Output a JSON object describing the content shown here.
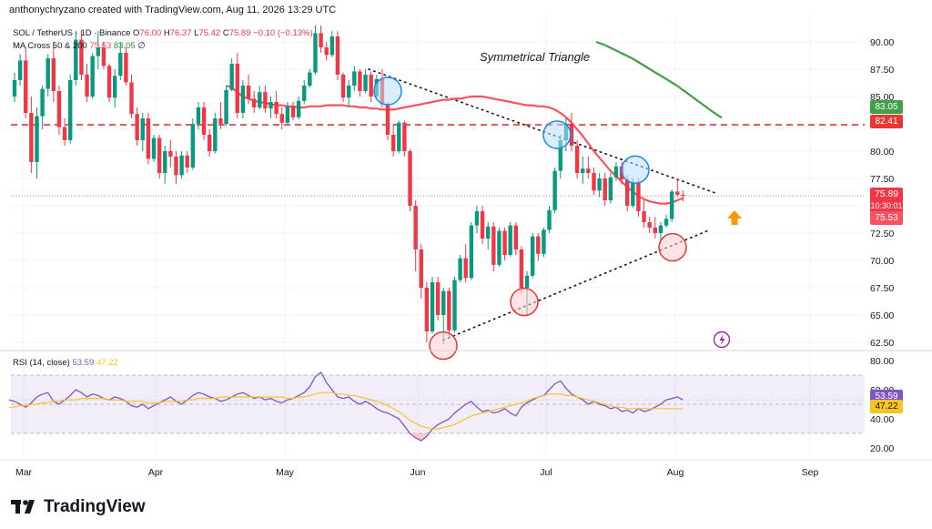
{
  "header": {
    "attribution": "anthonychryzano created with TradingView.com, Aug 11, 2026 13:29 UTC"
  },
  "legend": {
    "symbol": "SOL / TetherUS · 1D · Binance",
    "ohlc": {
      "open_label": "O",
      "open": "76.00",
      "high_label": "H",
      "high": "76.37",
      "low_label": "L",
      "low": "75.42",
      "close_label": "C",
      "close": "75.89",
      "change": "−0.10 (−0.13%)"
    },
    "ma_label": "MA Cross 50 & 200",
    "ma50_value": "75.53",
    "ma200_value": "83.05",
    "ma_extra": "∅"
  },
  "rsi_legend": {
    "label": "RSI (14, close)",
    "value": "53.59",
    "ma_value": "47.22"
  },
  "annotation": {
    "pattern": "Symmetrical Triangle"
  },
  "price_tags": {
    "ma200": "83.05",
    "level": "82.41",
    "last": "75.89",
    "countdown": "10:30:01",
    "ma50": "75.53",
    "rsi": "53.59",
    "rsi_ma": "47.22"
  },
  "brand": {
    "name": "TradingView"
  },
  "colors": {
    "up": "#089981",
    "down": "#f23645",
    "ma50": "#f7525f",
    "ma200": "#43a047",
    "rsi": "#7e57c2",
    "rsi_ma": "#f7c325",
    "level": "#e53935",
    "arrow": "#ff9800"
  },
  "chart_data": {
    "type": "candlestick",
    "price_axis": {
      "ticks": [
        62.5,
        65.0,
        67.5,
        70.0,
        72.5,
        75.0,
        77.5,
        80.0,
        82.5,
        85.0,
        87.5,
        90.0
      ],
      "tick_labels": [
        "62.50",
        "65.00",
        "67.50",
        "70.00",
        "72.50",
        "75.00",
        "77.50",
        "80.00",
        "82.50",
        "85.00",
        "87.50",
        "90.00"
      ],
      "range": [
        62.0,
        91.5
      ]
    },
    "time_axis": {
      "labels": [
        "Mar",
        "Apr",
        "May",
        "Jun",
        "Jul",
        "Aug",
        "Sep"
      ]
    },
    "horizontal_level": 82.41,
    "candles": [
      [
        85.0,
        87.2,
        84.5,
        86.5
      ],
      [
        86.5,
        88.9,
        86.0,
        88.3
      ],
      [
        88.3,
        89.5,
        83.0,
        83.5
      ],
      [
        83.5,
        85.0,
        78.0,
        79.0
      ],
      [
        79.0,
        84.0,
        77.5,
        83.2
      ],
      [
        83.2,
        86.0,
        82.0,
        85.7
      ],
      [
        85.7,
        88.9,
        85.0,
        88.5
      ],
      [
        88.5,
        90.0,
        84.5,
        85.5
      ],
      [
        85.5,
        86.0,
        81.5,
        82.2
      ],
      [
        82.2,
        83.0,
        80.5,
        81.0
      ],
      [
        81.0,
        87.0,
        80.7,
        86.5
      ],
      [
        86.5,
        91.0,
        86.0,
        90.2
      ],
      [
        90.2,
        91.0,
        86.5,
        87.0
      ],
      [
        87.0,
        88.0,
        84.5,
        85.0
      ],
      [
        85.0,
        89.0,
        84.8,
        88.7
      ],
      [
        88.7,
        91.0,
        87.5,
        89.5
      ],
      [
        89.5,
        90.0,
        87.5,
        87.8
      ],
      [
        87.8,
        88.0,
        84.5,
        84.9
      ],
      [
        84.9,
        87.5,
        84.0,
        86.9
      ],
      [
        86.9,
        90.0,
        86.5,
        89.0
      ],
      [
        89.0,
        89.5,
        86.0,
        86.3
      ],
      [
        86.3,
        87.0,
        83.0,
        83.4
      ],
      [
        83.4,
        84.0,
        80.5,
        81.0
      ],
      [
        81.0,
        83.5,
        80.0,
        83.0
      ],
      [
        83.0,
        83.5,
        78.8,
        79.3
      ],
      [
        79.3,
        81.5,
        79.0,
        81.2
      ],
      [
        81.2,
        81.5,
        77.5,
        78.0
      ],
      [
        78.0,
        80.5,
        77.0,
        80.0
      ],
      [
        80.0,
        81.0,
        78.5,
        79.5
      ],
      [
        79.5,
        80.0,
        77.0,
        77.8
      ],
      [
        77.8,
        80.0,
        77.5,
        79.6
      ],
      [
        79.6,
        80.0,
        78.0,
        78.5
      ],
      [
        78.5,
        83.0,
        78.3,
        82.5
      ],
      [
        82.5,
        84.5,
        82.0,
        84.0
      ],
      [
        84.0,
        84.5,
        81.0,
        81.5
      ],
      [
        81.5,
        82.0,
        79.5,
        80.0
      ],
      [
        80.0,
        83.5,
        79.8,
        83.0
      ],
      [
        83.0,
        84.5,
        82.0,
        82.5
      ],
      [
        82.5,
        86.0,
        82.3,
        85.6
      ],
      [
        85.6,
        88.5,
        85.5,
        88.0
      ],
      [
        88.0,
        89.0,
        83.0,
        83.5
      ],
      [
        83.5,
        86.5,
        83.0,
        86.0
      ],
      [
        86.0,
        87.0,
        84.3,
        84.8
      ],
      [
        84.8,
        85.5,
        83.5,
        84.0
      ],
      [
        84.0,
        86.0,
        83.8,
        85.4
      ],
      [
        85.4,
        86.0,
        83.5,
        83.9
      ],
      [
        83.9,
        85.0,
        83.0,
        84.5
      ],
      [
        84.5,
        85.5,
        83.0,
        83.4
      ],
      [
        83.4,
        84.0,
        82.0,
        82.6
      ],
      [
        82.6,
        84.5,
        82.5,
        84.1
      ],
      [
        84.1,
        84.5,
        82.8,
        83.1
      ],
      [
        83.1,
        85.0,
        82.9,
        84.6
      ],
      [
        84.6,
        86.5,
        84.3,
        86.0
      ],
      [
        86.0,
        87.5,
        85.8,
        87.2
      ],
      [
        87.2,
        91.5,
        87.0,
        90.8
      ],
      [
        90.8,
        91.5,
        89.0,
        89.5
      ],
      [
        89.5,
        90.0,
        88.3,
        88.8
      ],
      [
        88.8,
        91.0,
        88.6,
        90.5
      ],
      [
        90.5,
        91.0,
        86.5,
        87.0
      ],
      [
        87.0,
        87.2,
        84.5,
        84.9
      ],
      [
        84.9,
        86.5,
        84.0,
        86.0
      ],
      [
        86.0,
        87.8,
        85.5,
        87.3
      ],
      [
        87.3,
        87.5,
        85.0,
        85.5
      ],
      [
        85.5,
        87.5,
        85.3,
        87.0
      ],
      [
        87.0,
        87.3,
        84.5,
        85.0
      ],
      [
        85.0,
        87.0,
        84.8,
        86.6
      ],
      [
        86.6,
        87.5,
        84.0,
        84.3
      ],
      [
        84.3,
        84.5,
        81.0,
        81.5
      ],
      [
        81.5,
        82.5,
        79.5,
        80.0
      ],
      [
        80.0,
        82.8,
        79.8,
        82.6
      ],
      [
        82.6,
        82.8,
        79.5,
        80.0
      ],
      [
        80.0,
        80.2,
        74.5,
        75.0
      ],
      [
        75.0,
        75.5,
        69.0,
        71.0
      ],
      [
        71.0,
        71.5,
        66.5,
        67.5
      ],
      [
        67.5,
        68.0,
        62.5,
        63.5
      ],
      [
        63.5,
        68.5,
        63.3,
        68.0
      ],
      [
        68.0,
        68.5,
        64.5,
        65.0
      ],
      [
        65.0,
        67.5,
        62.3,
        67.2
      ],
      [
        67.2,
        67.5,
        63.0,
        63.6
      ],
      [
        63.6,
        68.5,
        63.4,
        68.2
      ],
      [
        68.2,
        70.5,
        68.0,
        70.2
      ],
      [
        70.2,
        71.5,
        68.0,
        68.4
      ],
      [
        68.4,
        73.5,
        68.2,
        73.2
      ],
      [
        73.2,
        75.0,
        72.5,
        74.5
      ],
      [
        74.5,
        75.0,
        71.5,
        72.0
      ],
      [
        72.0,
        73.5,
        71.0,
        73.1
      ],
      [
        73.1,
        73.5,
        69.0,
        69.6
      ],
      [
        69.6,
        73.0,
        69.4,
        72.7
      ],
      [
        72.7,
        73.0,
        70.0,
        70.5
      ],
      [
        70.5,
        73.5,
        70.3,
        73.2
      ],
      [
        73.2,
        73.5,
        70.5,
        71.0
      ],
      [
        71.0,
        71.3,
        67.0,
        67.5
      ],
      [
        67.5,
        69.0,
        65.0,
        68.6
      ],
      [
        68.6,
        72.5,
        68.4,
        72.2
      ],
      [
        72.2,
        72.5,
        70.0,
        70.6
      ],
      [
        70.6,
        73.0,
        70.3,
        72.8
      ],
      [
        72.8,
        75.0,
        72.5,
        74.6
      ],
      [
        74.6,
        78.5,
        74.3,
        78.2
      ],
      [
        78.2,
        81.5,
        77.5,
        81.0
      ],
      [
        81.0,
        83.0,
        80.0,
        82.5
      ],
      [
        82.5,
        83.5,
        80.0,
        80.5
      ],
      [
        80.5,
        81.0,
        77.5,
        78.0
      ],
      [
        78.0,
        79.5,
        77.0,
        78.4
      ],
      [
        78.4,
        79.5,
        77.5,
        78.0
      ],
      [
        78.0,
        78.5,
        76.0,
        76.4
      ],
      [
        76.4,
        78.0,
        75.8,
        77.5
      ],
      [
        77.5,
        78.0,
        75.0,
        75.5
      ],
      [
        75.5,
        78.0,
        75.2,
        77.6
      ],
      [
        77.6,
        79.0,
        77.3,
        78.6
      ],
      [
        78.6,
        79.0,
        77.0,
        77.4
      ],
      [
        77.4,
        77.8,
        74.5,
        75.0
      ],
      [
        75.0,
        77.5,
        74.8,
        77.2
      ],
      [
        77.2,
        77.5,
        74.0,
        74.5
      ],
      [
        74.5,
        75.5,
        73.0,
        73.5
      ],
      [
        73.5,
        74.0,
        72.5,
        73.0
      ],
      [
        73.0,
        74.0,
        72.0,
        72.5
      ],
      [
        72.5,
        73.5,
        71.5,
        73.2
      ],
      [
        73.2,
        74.2,
        73.0,
        73.8
      ],
      [
        73.8,
        76.5,
        73.5,
        76.3
      ],
      [
        76.3,
        77.5,
        75.8,
        76.0
      ],
      [
        76.0,
        76.4,
        75.4,
        75.9
      ]
    ],
    "ma50": [
      86.0,
      85.8,
      85.4,
      85.0,
      84.8,
      84.6,
      84.5,
      84.4,
      84.3,
      84.2,
      84.2,
      84.1,
      84.1,
      84.0,
      84.0,
      84.1,
      84.1,
      84.1,
      84.2,
      84.2,
      84.2,
      84.2,
      84.1,
      84.1,
      84.0,
      84.0,
      83.9,
      83.9,
      83.8,
      83.8,
      83.8,
      83.9,
      84.0,
      84.1,
      84.2,
      84.3,
      84.4,
      84.5,
      84.6,
      84.7,
      84.7,
      84.8,
      84.8,
      84.9,
      85.0,
      85.0,
      85.0,
      84.9,
      84.8,
      84.7,
      84.6,
      84.5,
      84.4,
      84.3,
      84.2,
      84.2,
      84.1,
      84.1,
      84.0,
      83.8,
      83.5,
      83.1,
      82.6,
      82.0,
      81.4,
      80.7,
      80.0,
      79.4,
      78.8,
      78.2,
      77.7,
      77.2,
      76.7,
      76.3,
      75.9,
      75.6,
      75.4,
      75.3,
      75.2,
      75.2,
      75.3,
      75.5,
      75.7
    ],
    "ma200": [
      90.0,
      89.7,
      89.3,
      88.9,
      88.5,
      88.0,
      87.5,
      87.0,
      86.5,
      86.0,
      85.4,
      84.8,
      84.2,
      83.6,
      83.05
    ],
    "rsi": [
      53,
      52,
      50,
      48,
      51,
      55,
      57,
      58,
      52,
      50,
      53,
      56,
      60,
      58,
      55,
      57,
      56,
      54,
      53,
      55,
      54,
      52,
      49,
      48,
      50,
      47,
      49,
      51,
      53,
      55,
      52,
      50,
      53,
      56,
      58,
      57,
      55,
      54,
      52,
      53,
      55,
      57,
      58,
      56,
      54,
      55,
      53,
      54,
      52,
      51,
      53,
      54,
      56,
      58,
      62,
      69,
      72,
      65,
      60,
      55,
      54,
      55,
      52,
      50,
      52,
      50,
      47,
      45,
      44,
      42,
      40,
      35,
      30,
      27,
      25,
      28,
      33,
      36,
      38,
      40,
      44,
      47,
      50,
      52,
      48,
      45,
      46,
      44,
      45,
      47,
      44,
      42,
      48,
      51,
      53,
      55,
      56,
      60,
      64,
      66,
      61,
      57,
      55,
      53,
      50,
      52,
      50,
      49,
      47,
      48,
      45,
      46,
      44,
      47,
      45,
      46,
      48,
      50,
      53,
      54,
      55,
      53
    ],
    "rsi_ma": [
      48,
      48,
      49,
      49,
      50,
      50,
      51,
      51,
      52,
      52,
      53,
      53,
      53,
      54,
      54,
      54,
      54,
      54,
      53,
      53,
      53,
      52,
      52,
      52,
      52,
      51,
      51,
      51,
      52,
      52,
      52,
      52,
      53,
      53,
      54,
      54,
      54,
      54,
      55,
      55,
      55,
      55,
      55,
      55,
      55,
      55,
      55,
      55,
      55,
      55,
      54,
      54,
      55,
      55,
      56,
      57,
      58,
      58,
      58,
      57,
      57,
      56,
      56,
      55,
      54,
      53,
      52,
      51,
      49,
      47,
      45,
      42,
      39,
      37,
      35,
      34,
      33,
      33,
      34,
      35,
      36,
      38,
      40,
      42,
      43,
      44,
      45,
      46,
      47,
      48,
      49,
      50,
      51,
      52,
      54,
      55,
      56,
      57,
      57,
      57,
      56,
      56,
      55,
      54,
      53,
      52,
      51,
      50,
      49,
      48,
      48,
      47,
      47,
      47,
      47,
      47,
      47,
      47,
      47,
      47,
      47,
      47
    ],
    "rsi_axis": {
      "ticks": [
        20,
        40,
        60,
        80
      ],
      "tick_labels": [
        "20.00",
        "40.00",
        "60.00",
        "80.00"
      ],
      "band": [
        30,
        70
      ]
    }
  }
}
